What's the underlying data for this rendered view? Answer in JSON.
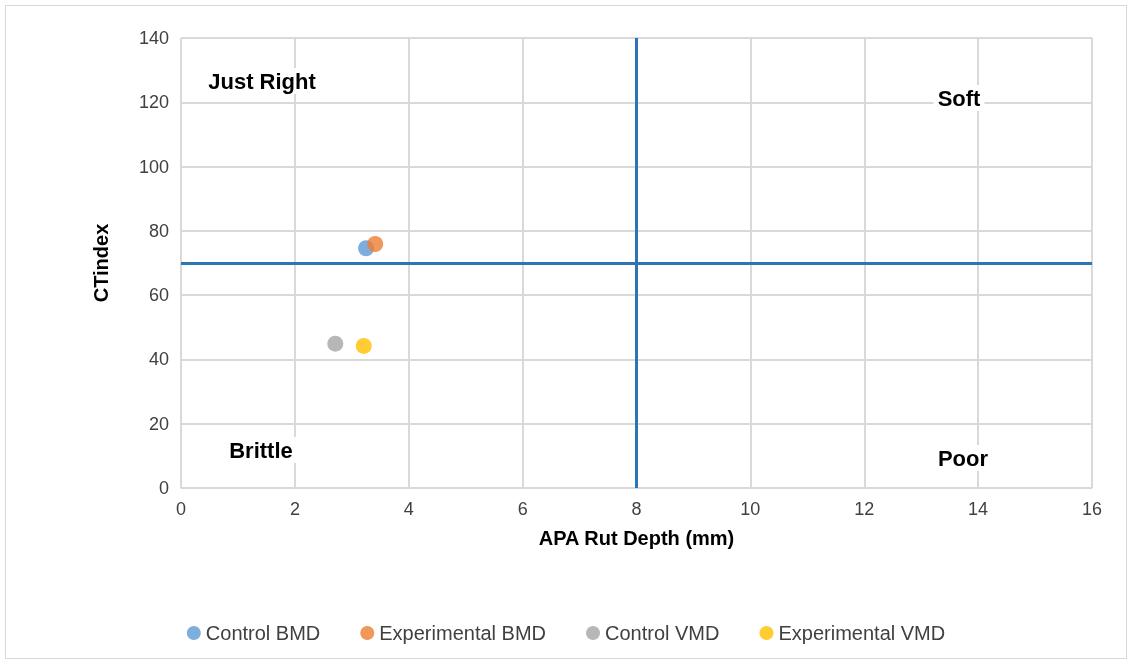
{
  "chart_data": {
    "type": "scatter",
    "xlabel": "APA Rut Depth (mm)",
    "ylabel": "CTindex",
    "xlim": [
      0,
      16
    ],
    "xticks": [
      0,
      2,
      4,
      6,
      8,
      10,
      12,
      14,
      16
    ],
    "ylim": [
      0,
      140
    ],
    "yticks": [
      0,
      20,
      40,
      60,
      80,
      100,
      120,
      140
    ],
    "grid": true,
    "legend": "bottom",
    "marker": "circle",
    "series": [
      {
        "name": "Control BMD",
        "color": "#5b9bd5",
        "x": [
          3.25
        ],
        "values": [
          74.6
        ]
      },
      {
        "name": "Experimental BMD",
        "color": "#ed7d31",
        "x": [
          3.41
        ],
        "values": [
          75.9
        ]
      },
      {
        "name": "Control VMD",
        "color": "#a5a5a5",
        "x": [
          2.71
        ],
        "values": [
          44.9
        ]
      },
      {
        "name": "Experimental VMD",
        "color": "#ffc000",
        "x": [
          3.21
        ],
        "values": [
          44.2
        ]
      }
    ],
    "ref_lines": [
      {
        "axis": "x",
        "value": 8,
        "color": "#2e75b6"
      },
      {
        "axis": "y",
        "value": 70,
        "color": "#2e75b6"
      }
    ],
    "annotations": [
      "Just Right",
      "Soft",
      "Brittle",
      "Poor"
    ]
  }
}
